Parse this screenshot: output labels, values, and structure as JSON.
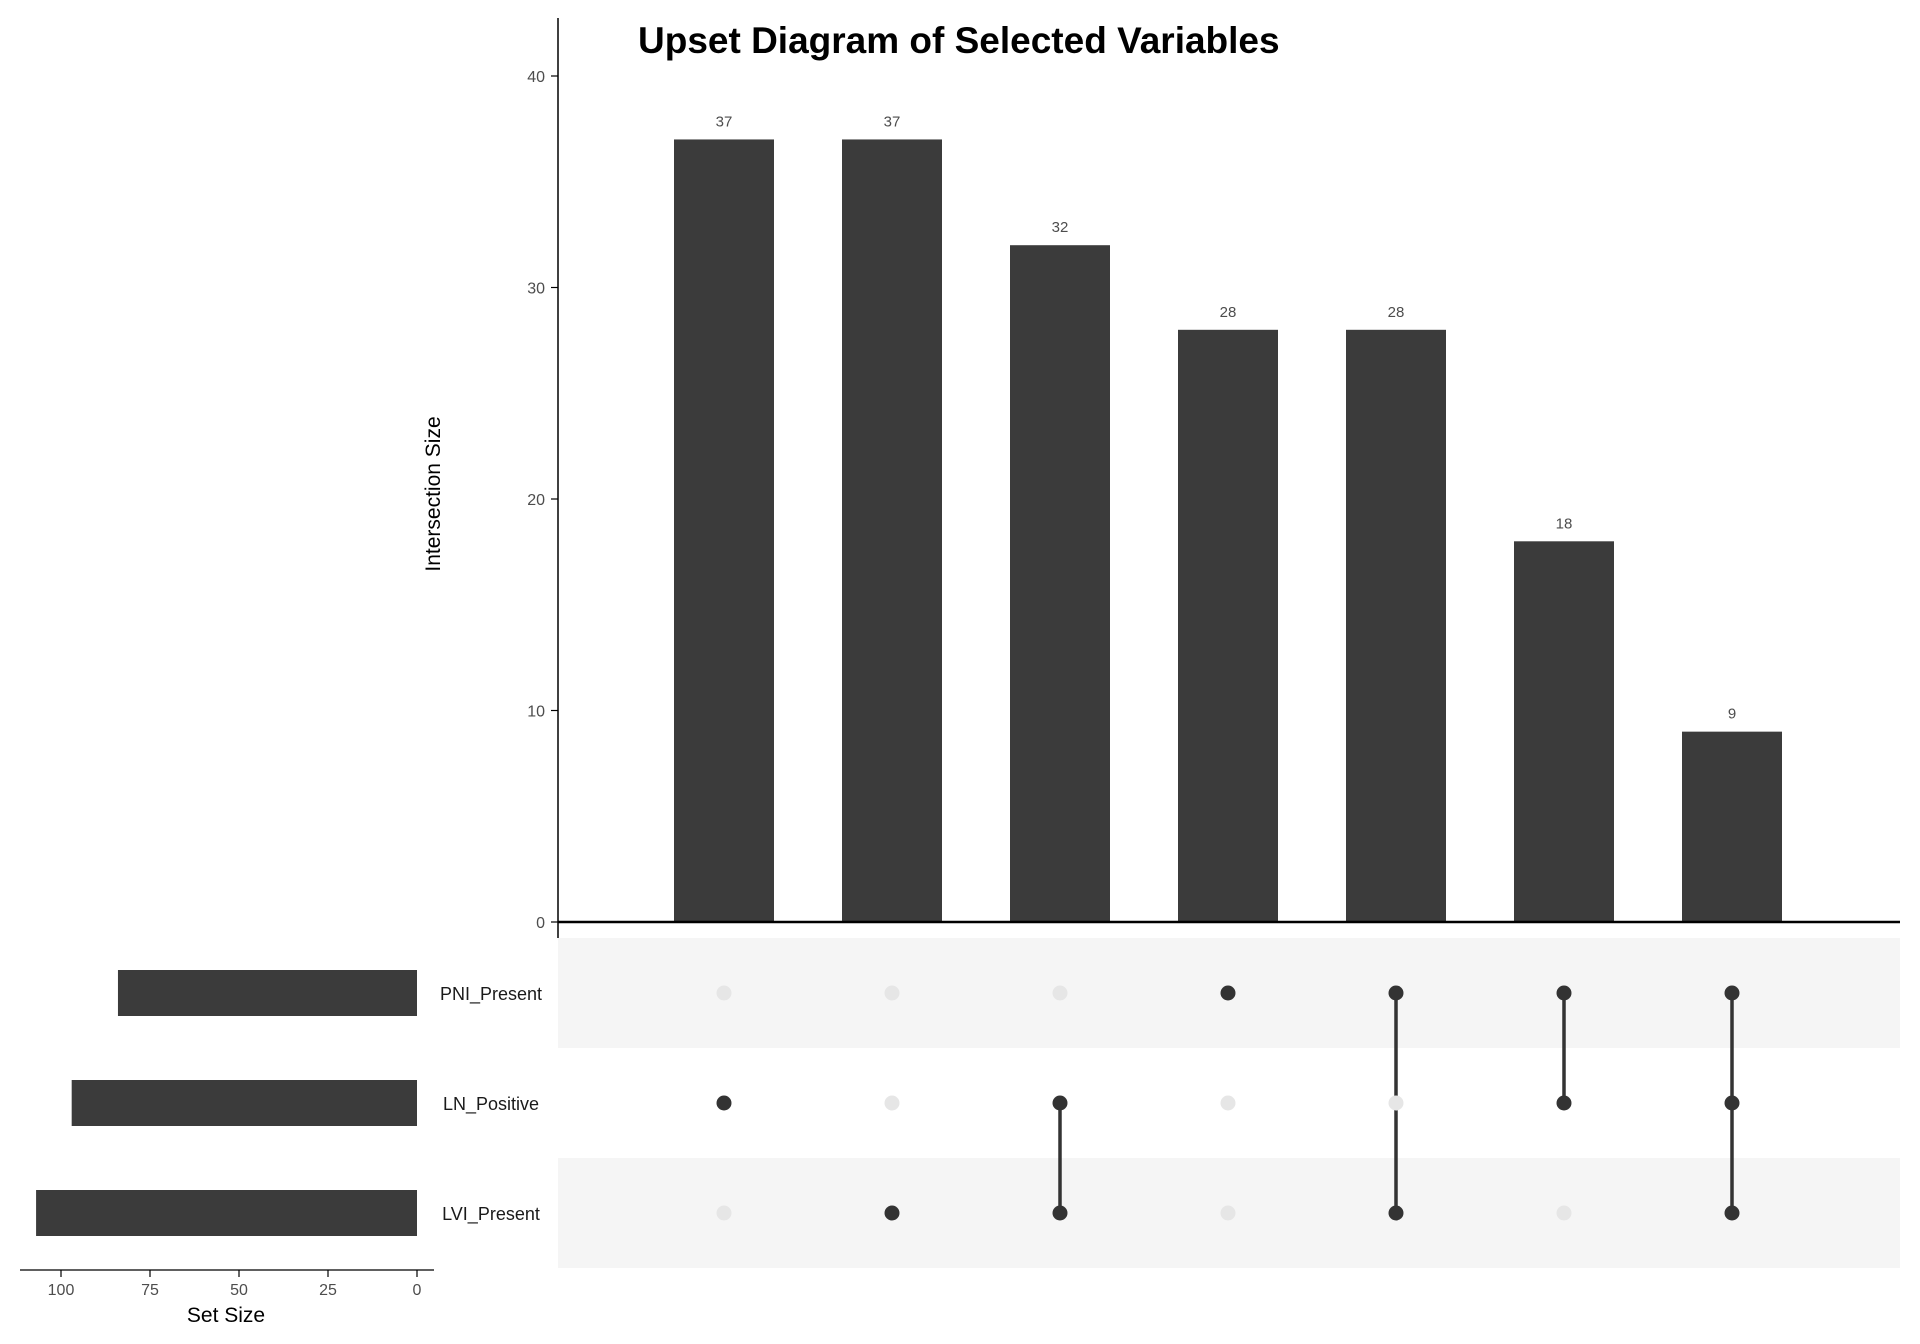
{
  "chart_data": {
    "type": "bar",
    "title": "Upset Diagram of Selected Variables",
    "ylabel": "Intersection Size",
    "set_size_label": "Set Size",
    "ylim": [
      0,
      42
    ],
    "y_ticks": [
      "0",
      "10",
      "20",
      "30",
      "40"
    ],
    "y_tick_values": [
      0,
      10,
      20,
      30,
      40
    ],
    "intersection_values": [
      37,
      37,
      32,
      28,
      28,
      18,
      9
    ],
    "intersection_labels": [
      "37",
      "37",
      "32",
      "28",
      "28",
      "18",
      "9"
    ],
    "sets": [
      {
        "name": "PNI_Present",
        "size": 84
      },
      {
        "name": "LN_Positive",
        "size": 97
      },
      {
        "name": "LVI_Present",
        "size": 107
      }
    ],
    "set_size_ticks": [
      "100",
      "75",
      "50",
      "25",
      "0"
    ],
    "set_size_tick_values": [
      100,
      75,
      50,
      25,
      0
    ],
    "set_size_max": 110,
    "memberships": [
      [
        "LN_Positive"
      ],
      [
        "LVI_Present"
      ],
      [
        "LN_Positive",
        "LVI_Present"
      ],
      [
        "PNI_Present"
      ],
      [
        "PNI_Present",
        "LVI_Present"
      ],
      [
        "PNI_Present",
        "LN_Positive"
      ],
      [
        "PNI_Present",
        "LN_Positive",
        "LVI_Present"
      ]
    ],
    "colors": {
      "bar": "#3b3b3b",
      "dot_active": "#333333",
      "dot_inactive": "#e6e6e6",
      "stripe": "#f5f5f5",
      "axis": "#000000"
    }
  }
}
